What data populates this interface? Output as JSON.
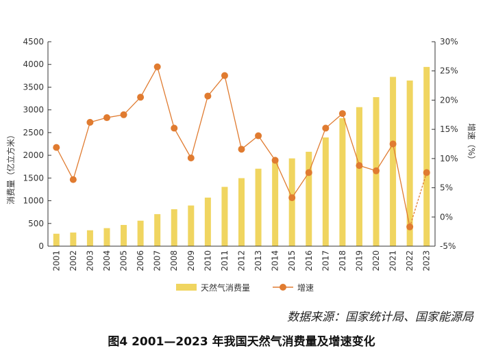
{
  "chart_data": {
    "type": "bar+line",
    "title": "图4  2001—2023 年我国天然气消费量及增速变化",
    "source": "数据来源：国家统计局、国家能源局",
    "categories": [
      "2001",
      "2002",
      "2003",
      "2004",
      "2005",
      "2006",
      "2007",
      "2008",
      "2009",
      "2010",
      "2011",
      "2012",
      "2013",
      "2014",
      "2015",
      "2016",
      "2017",
      "2018",
      "2019",
      "2020",
      "2021",
      "2022",
      "2023"
    ],
    "series": [
      {
        "name": "天然气消费量",
        "type": "bar",
        "axis": "left",
        "color": "#f0d560",
        "values": [
          274,
          300,
          350,
          397,
          467,
          561,
          705,
          813,
          895,
          1069,
          1305,
          1497,
          1705,
          1870,
          1932,
          2078,
          2393,
          2817,
          3060,
          3280,
          3726,
          3646,
          3945
        ]
      },
      {
        "name": "增速",
        "type": "line",
        "axis": "right",
        "color": "#e07b30",
        "values": [
          11.9,
          6.4,
          16.2,
          17.0,
          17.5,
          20.5,
          25.7,
          15.2,
          10.1,
          20.7,
          24.2,
          11.6,
          13.9,
          9.7,
          3.3,
          7.6,
          15.2,
          17.7,
          8.8,
          7.9,
          12.5,
          -1.7,
          7.6
        ],
        "dashed_last_segment": true
      }
    ],
    "ylabel": "消费量（亿立方米）",
    "y2label": "增速（%）",
    "ylim": [
      0,
      4500
    ],
    "yticks": [
      "0",
      "500",
      "1000",
      "1500",
      "2000",
      "2500",
      "3000",
      "3500",
      "4000",
      "4500"
    ],
    "y2lim": [
      -5,
      30
    ],
    "y2ticks": [
      "-5%",
      "0%",
      "5%",
      "10%",
      "15%",
      "20%",
      "25%",
      "30%"
    ],
    "legend": "bottom",
    "grid": false
  }
}
